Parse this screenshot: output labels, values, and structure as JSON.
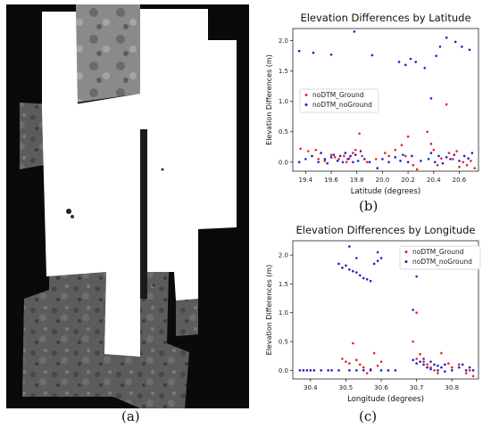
{
  "labels": {
    "a": "(a)",
    "b": "(b)",
    "c": "(c)"
  },
  "image_panel": {
    "description_icon": "lunar-mosaic-image"
  },
  "colors": {
    "ground": "#e8231f",
    "noground": "#2020c8",
    "image_dark": "#0a0a0a",
    "image_mid": "#6d6d6d"
  },
  "chart_data": [
    {
      "type": "scatter",
      "title": "Elevation Differences by Latitude",
      "xlabel": "Latitude (degrees)",
      "ylabel": "Elevation Differences (m)",
      "xlim": [
        19.3,
        20.75
      ],
      "ylim": [
        -0.15,
        2.2
      ],
      "xticks": [
        "19.4",
        "19.6",
        "19.8",
        "20.0",
        "20.2",
        "20.4",
        "20.6"
      ],
      "xtick_values": [
        19.4,
        19.6,
        19.8,
        20.0,
        20.2,
        20.4,
        20.6
      ],
      "yticks": [
        "0.0",
        "0.5",
        "1.0",
        "1.5",
        "2.0"
      ],
      "ytick_values": [
        0.0,
        0.5,
        1.0,
        1.5,
        2.0
      ],
      "legend": "center-left",
      "series": [
        {
          "name": "noDTM_Ground",
          "color": "#e8231f",
          "points": [
            [
              19.36,
              0.22
            ],
            [
              19.42,
              0.18
            ],
            [
              19.48,
              0.2
            ],
            [
              19.5,
              0.05
            ],
            [
              19.55,
              0.02
            ],
            [
              19.6,
              0.12
            ],
            [
              19.63,
              0.08
            ],
            [
              19.66,
              0.05
            ],
            [
              19.7,
              0.1
            ],
            [
              19.72,
              0.0
            ],
            [
              19.74,
              0.06
            ],
            [
              19.77,
              0.15
            ],
            [
              19.79,
              0.2
            ],
            [
              19.82,
              0.47
            ],
            [
              19.84,
              0.1
            ],
            [
              19.88,
              0.0
            ],
            [
              19.95,
              0.05
            ],
            [
              20.02,
              0.15
            ],
            [
              20.05,
              0.1
            ],
            [
              20.1,
              0.2
            ],
            [
              20.15,
              0.28
            ],
            [
              20.18,
              0.1
            ],
            [
              20.2,
              0.42
            ],
            [
              20.24,
              -0.05
            ],
            [
              20.27,
              -0.12
            ],
            [
              20.35,
              0.5
            ],
            [
              20.38,
              0.3
            ],
            [
              20.4,
              0.2
            ],
            [
              20.43,
              -0.05
            ],
            [
              20.46,
              0.06
            ],
            [
              20.5,
              0.95
            ],
            [
              20.52,
              0.15
            ],
            [
              20.55,
              0.05
            ],
            [
              20.58,
              0.18
            ],
            [
              20.6,
              -0.08
            ],
            [
              20.63,
              0.0
            ],
            [
              20.66,
              -0.05
            ],
            [
              20.69,
              0.02
            ],
            [
              20.72,
              -0.1
            ]
          ]
        },
        {
          "name": "noDTM_noGround",
          "color": "#2020c8",
          "points": [
            [
              19.35,
              1.83
            ],
            [
              19.46,
              1.8
            ],
            [
              19.6,
              1.77
            ],
            [
              19.78,
              2.15
            ],
            [
              19.92,
              1.76
            ],
            [
              20.13,
              1.65
            ],
            [
              20.18,
              1.6
            ],
            [
              20.22,
              1.7
            ],
            [
              20.26,
              1.65
            ],
            [
              20.33,
              1.55
            ],
            [
              20.45,
              1.9
            ],
            [
              20.5,
              2.05
            ],
            [
              20.57,
              1.98
            ],
            [
              20.62,
              1.9
            ],
            [
              20.68,
              1.85
            ],
            [
              20.38,
              1.05
            ],
            [
              20.42,
              1.75
            ],
            [
              19.35,
              0.0
            ],
            [
              19.4,
              0.05
            ],
            [
              19.45,
              0.1
            ],
            [
              19.5,
              0.0
            ],
            [
              19.52,
              0.15
            ],
            [
              19.55,
              0.05
            ],
            [
              19.57,
              -0.02
            ],
            [
              19.6,
              0.08
            ],
            [
              19.62,
              0.12
            ],
            [
              19.65,
              0.02
            ],
            [
              19.67,
              0.1
            ],
            [
              19.69,
              0.0
            ],
            [
              19.71,
              0.15
            ],
            [
              19.73,
              0.05
            ],
            [
              19.75,
              0.1
            ],
            [
              19.77,
              0.0
            ],
            [
              19.79,
              0.12
            ],
            [
              19.81,
              0.02
            ],
            [
              19.83,
              0.18
            ],
            [
              19.86,
              0.05
            ],
            [
              19.9,
              0.0
            ],
            [
              19.96,
              -0.1
            ],
            [
              20.0,
              0.05
            ],
            [
              20.05,
              0.0
            ],
            [
              20.1,
              0.08
            ],
            [
              20.14,
              0.02
            ],
            [
              20.16,
              0.12
            ],
            [
              20.2,
              0.0
            ],
            [
              20.23,
              0.1
            ],
            [
              20.3,
              0.02
            ],
            [
              20.36,
              0.05
            ],
            [
              20.38,
              0.15
            ],
            [
              20.41,
              0.0
            ],
            [
              20.44,
              0.1
            ],
            [
              20.47,
              -0.02
            ],
            [
              20.5,
              0.08
            ],
            [
              20.53,
              0.05
            ],
            [
              20.56,
              0.12
            ],
            [
              20.6,
              0.02
            ],
            [
              20.64,
              0.1
            ],
            [
              20.67,
              0.06
            ],
            [
              20.7,
              0.15
            ]
          ]
        }
      ]
    },
    {
      "type": "scatter",
      "title": "Elevation Differences by Longitude",
      "xlabel": "Longitude (degrees)",
      "ylabel": "Elevation Differences (m)",
      "xlim": [
        30.35,
        30.875
      ],
      "ylim": [
        -0.15,
        2.25
      ],
      "xticks": [
        "30.4",
        "30.5",
        "30.6",
        "30.7",
        "30.8"
      ],
      "xtick_values": [
        30.4,
        30.5,
        30.6,
        30.7,
        30.8
      ],
      "yticks": [
        "0.0",
        "0.5",
        "1.0",
        "1.5",
        "2.0"
      ],
      "ytick_values": [
        0.0,
        0.5,
        1.0,
        1.5,
        2.0
      ],
      "legend": "top-right",
      "series": [
        {
          "name": "noDTM_Ground",
          "color": "#e8231f",
          "points": [
            [
              30.49,
              0.2
            ],
            [
              30.5,
              0.15
            ],
            [
              30.51,
              0.12
            ],
            [
              30.52,
              0.47
            ],
            [
              30.53,
              0.18
            ],
            [
              30.54,
              0.1
            ],
            [
              30.55,
              0.05
            ],
            [
              30.56,
              -0.05
            ],
            [
              30.57,
              0.02
            ],
            [
              30.58,
              0.3
            ],
            [
              30.59,
              0.08
            ],
            [
              30.6,
              0.15
            ],
            [
              30.69,
              0.5
            ],
            [
              30.7,
              0.2
            ],
            [
              30.7,
              1.0
            ],
            [
              30.71,
              0.28
            ],
            [
              30.72,
              0.15
            ],
            [
              30.73,
              0.1
            ],
            [
              30.74,
              0.05
            ],
            [
              30.75,
              0.0
            ],
            [
              30.76,
              -0.05
            ],
            [
              30.77,
              0.3
            ],
            [
              30.79,
              0.12
            ],
            [
              30.8,
              0.05
            ],
            [
              30.82,
              0.1
            ],
            [
              30.84,
              -0.05
            ],
            [
              30.85,
              0.0
            ],
            [
              30.86,
              -0.1
            ]
          ]
        },
        {
          "name": "noDTM_noGround",
          "color": "#2020c8",
          "points": [
            [
              30.48,
              1.85
            ],
            [
              30.49,
              1.78
            ],
            [
              30.5,
              1.82
            ],
            [
              30.51,
              1.75
            ],
            [
              30.52,
              1.72
            ],
            [
              30.53,
              1.7
            ],
            [
              30.54,
              1.65
            ],
            [
              30.55,
              1.6
            ],
            [
              30.56,
              1.58
            ],
            [
              30.57,
              1.55
            ],
            [
              30.58,
              1.85
            ],
            [
              30.59,
              1.9
            ],
            [
              30.59,
              2.05
            ],
            [
              30.6,
              1.95
            ],
            [
              30.51,
              2.15
            ],
            [
              30.53,
              1.95
            ],
            [
              30.69,
              1.05
            ],
            [
              30.7,
              1.63
            ],
            [
              30.37,
              0.0
            ],
            [
              30.38,
              0.0
            ],
            [
              30.39,
              0.0
            ],
            [
              30.4,
              0.0
            ],
            [
              30.41,
              0.0
            ],
            [
              30.43,
              0.0
            ],
            [
              30.45,
              0.0
            ],
            [
              30.46,
              0.0
            ],
            [
              30.48,
              0.0
            ],
            [
              30.51,
              0.0
            ],
            [
              30.53,
              0.0
            ],
            [
              30.55,
              0.0
            ],
            [
              30.57,
              0.0
            ],
            [
              30.6,
              0.0
            ],
            [
              30.62,
              0.0
            ],
            [
              30.64,
              0.0
            ],
            [
              30.69,
              0.18
            ],
            [
              30.7,
              0.12
            ],
            [
              30.71,
              0.15
            ],
            [
              30.72,
              0.1
            ],
            [
              30.72,
              0.2
            ],
            [
              30.73,
              0.05
            ],
            [
              30.74,
              0.15
            ],
            [
              30.74,
              0.02
            ],
            [
              30.75,
              0.1
            ],
            [
              30.76,
              0.08
            ],
            [
              30.76,
              0.0
            ],
            [
              30.77,
              0.05
            ],
            [
              30.78,
              0.1
            ],
            [
              30.78,
              -0.02
            ],
            [
              30.8,
              0.0
            ],
            [
              30.82,
              0.05
            ],
            [
              30.83,
              0.1
            ],
            [
              30.84,
              0.0
            ],
            [
              30.85,
              0.05
            ],
            [
              30.86,
              0.0
            ]
          ]
        }
      ]
    }
  ]
}
